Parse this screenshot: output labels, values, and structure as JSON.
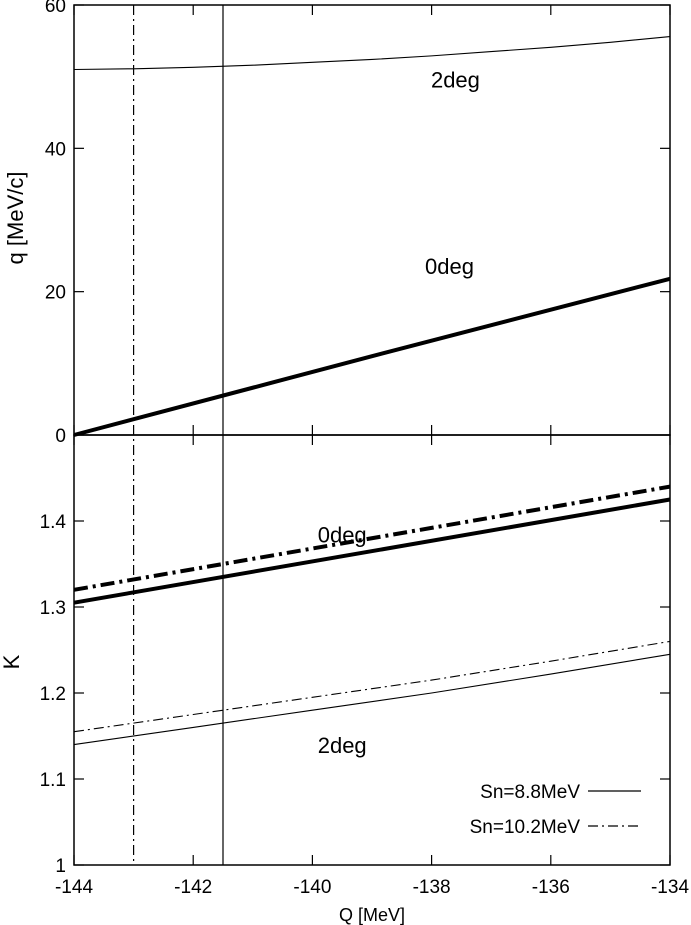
{
  "chart_data": {
    "type": "line",
    "xlabel": "Q [MeV]",
    "xlim": [
      -144,
      -134
    ],
    "xticks": [
      -144,
      -142,
      -140,
      -138,
      -136,
      -134
    ],
    "vertical_lines": [
      {
        "x": -143,
        "style": "dashdot"
      },
      {
        "x": -141.5,
        "style": "solid"
      }
    ],
    "legend": {
      "placement": "bottom-right",
      "entries": [
        {
          "label": "Sn=8.8MeV",
          "style": "solid"
        },
        {
          "label": "Sn=10.2MeV",
          "style": "dashdot"
        }
      ]
    },
    "panels": [
      {
        "id": "top",
        "ylabel": "q [MeV/c]",
        "ylim": [
          0,
          60
        ],
        "yticks": [
          0,
          20,
          40,
          60
        ],
        "annotations": [
          {
            "text": "2deg",
            "x": -137.6,
            "y": 48.5
          },
          {
            "text": "0deg",
            "x": -137.7,
            "y": 22.5
          }
        ],
        "series": [
          {
            "style": "solid-thin",
            "x": [
              -144,
              -143,
              -142,
              -141,
              -140,
              -139,
              -138,
              -137,
              -136,
              -135,
              -134
            ],
            "y": [
              51.0,
              51.1,
              51.3,
              51.6,
              52.0,
              52.4,
              52.9,
              53.5,
              54.1,
              54.8,
              55.6
            ]
          },
          {
            "style": "solid-thick",
            "x": [
              -144,
              -139,
              -134
            ],
            "y": [
              0,
              11.0,
              21.8
            ]
          }
        ]
      },
      {
        "id": "bottom",
        "ylabel": "K",
        "ylim": [
          1.0,
          1.5
        ],
        "yticks": [
          1,
          1.1,
          1.2,
          1.3,
          1.4
        ],
        "annotations": [
          {
            "text": "0deg",
            "x": -139.5,
            "y": 1.375
          },
          {
            "text": "2deg",
            "x": -139.5,
            "y": 1.13
          }
        ],
        "series": [
          {
            "style": "dashdot-thick",
            "x": [
              -144,
              -134
            ],
            "y": [
              1.32,
              1.44
            ]
          },
          {
            "style": "solid-thick",
            "x": [
              -144,
              -134
            ],
            "y": [
              1.305,
              1.425
            ]
          },
          {
            "style": "dashdot-thin",
            "x": [
              -144,
              -142,
              -140,
              -138,
              -136,
              -134
            ],
            "y": [
              1.155,
              1.175,
              1.195,
              1.215,
              1.237,
              1.26
            ]
          },
          {
            "style": "solid-thin",
            "x": [
              -144,
              -142,
              -140,
              -138,
              -136,
              -134
            ],
            "y": [
              1.14,
              1.16,
              1.18,
              1.2,
              1.222,
              1.245
            ]
          }
        ]
      }
    ]
  }
}
